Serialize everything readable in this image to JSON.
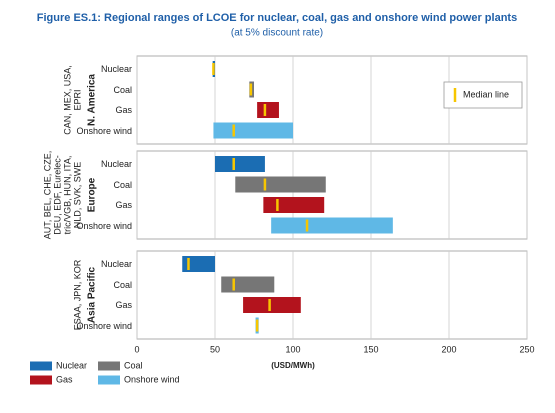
{
  "chart_data": {
    "type": "range_bar",
    "title": "Figure ES.1: Regional ranges of LCOE for nuclear, coal, gas and onshore wind power plants",
    "subtitle": "(at 5% discount rate)",
    "xlabel": "(USD/MWh)",
    "xlim": [
      0,
      250
    ],
    "xticks": [
      0,
      50,
      100,
      150,
      200,
      250
    ],
    "grid": true,
    "categories": [
      "Nuclear",
      "Coal",
      "Gas",
      "Onshore wind"
    ],
    "series": [
      {
        "name": "Nuclear",
        "color": "#1b6db3"
      },
      {
        "name": "Coal",
        "color": "#767676"
      },
      {
        "name": "Gas",
        "color": "#b3131d"
      },
      {
        "name": "Onshore wind",
        "color": "#5fb8e6"
      }
    ],
    "median_label": "Median line",
    "median_color": "#f7c600",
    "panels": [
      {
        "region": "N. America",
        "sources": [
          "CAN, MEX, USA,",
          "EPRI"
        ],
        "low": [
          48.5,
          72,
          77,
          49
        ],
        "high": [
          50,
          75,
          91,
          100
        ],
        "median": [
          49,
          73,
          82,
          62
        ]
      },
      {
        "region": "Europe",
        "sources": [
          "AUT, BEL, CHE, CZE,",
          "DEU, EDF, Eurelec-",
          "tric/VGB, HUN, ITA,",
          "NLD, SVK, SWE"
        ],
        "low": [
          50,
          63,
          81,
          86
        ],
        "high": [
          82,
          121,
          120,
          164
        ],
        "median": [
          62,
          82,
          90,
          109
        ]
      },
      {
        "region": "Asia Pacific",
        "sources": [
          "ESAA, JPN, KOR"
        ],
        "low": [
          29,
          54,
          68,
          76
        ],
        "high": [
          50,
          88,
          105,
          78
        ],
        "median": [
          33,
          62,
          85,
          77
        ]
      }
    ]
  }
}
